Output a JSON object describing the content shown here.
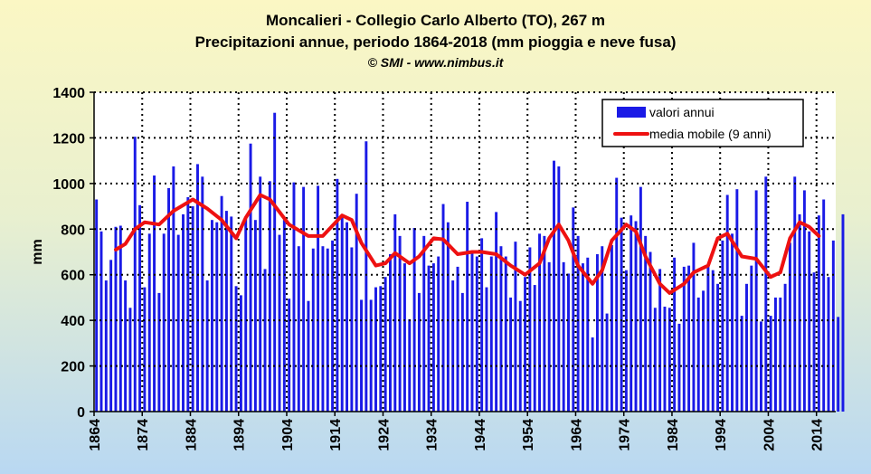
{
  "header": {
    "title": "Moncalieri - Collegio Carlo Alberto (TO), 267 m",
    "subtitle": "Precipitazioni annue, periodo 1864-2018 (mm pioggia e neve fusa)",
    "credit": "© SMI - www.nimbus.it"
  },
  "chart_data": {
    "type": "bar",
    "ylabel": "mm",
    "xlabel": "",
    "ylim": [
      0,
      1400
    ],
    "yticks": [
      0,
      200,
      400,
      600,
      800,
      1000,
      1200,
      1400
    ],
    "xlim": [
      1864,
      2018
    ],
    "xticks": [
      1864,
      1874,
      1884,
      1894,
      1904,
      1914,
      1924,
      1934,
      1944,
      1954,
      1964,
      1974,
      1984,
      1994,
      2004,
      2014
    ],
    "grid": "dotted, y-major and x every 10 years",
    "legend_position": "top-right",
    "colors": {
      "bars": "#1a1ae6",
      "moving_average": "#ee1111",
      "grid": "#000000"
    },
    "series": [
      {
        "name": "valori annui",
        "kind": "bar",
        "start_year": 1864,
        "values": [
          930,
          790,
          575,
          665,
          810,
          815,
          575,
          455,
          1205,
          905,
          545,
          780,
          1035,
          520,
          780,
          980,
          1075,
          775,
          865,
          940,
          900,
          1085,
          1030,
          575,
          840,
          830,
          945,
          880,
          855,
          550,
          510,
          845,
          1175,
          840,
          1030,
          625,
          1010,
          1310,
          775,
          840,
          495,
          1005,
          725,
          985,
          485,
          715,
          990,
          725,
          715,
          750,
          1020,
          855,
          830,
          720,
          955,
          490,
          1185,
          490,
          545,
          550,
          590,
          690,
          865,
          770,
          650,
          405,
          805,
          520,
          770,
          640,
          650,
          680,
          910,
          830,
          575,
          635,
          520,
          920,
          700,
          680,
          760,
          545,
          680,
          875,
          725,
          680,
          500,
          745,
          485,
          590,
          720,
          555,
          780,
          770,
          655,
          1100,
          1075,
          655,
          605,
          895,
          770,
          650,
          675,
          325,
          690,
          725,
          430,
          730,
          1025,
          850,
          620,
          860,
          835,
          985,
          770,
          700,
          455,
          625,
          460,
          455,
          675,
          385,
          635,
          640,
          740,
          500,
          530,
          640,
          620,
          560,
          750,
          950,
          780,
          975,
          420,
          560,
          640,
          970,
          395,
          1030,
          420,
          500,
          500,
          560,
          740,
          1030,
          865,
          970,
          790,
          610,
          860,
          930,
          590,
          750,
          415,
          865
        ]
      },
      {
        "name": "media mobile (9 anni)",
        "kind": "line",
        "points": [
          [
            1868,
            710
          ],
          [
            1870,
            735
          ],
          [
            1872,
            800
          ],
          [
            1874,
            830
          ],
          [
            1877,
            820
          ],
          [
            1880,
            880
          ],
          [
            1884,
            930
          ],
          [
            1887,
            890
          ],
          [
            1890,
            840
          ],
          [
            1893,
            760
          ],
          [
            1895,
            850
          ],
          [
            1898,
            950
          ],
          [
            1900,
            930
          ],
          [
            1904,
            820
          ],
          [
            1908,
            770
          ],
          [
            1911,
            770
          ],
          [
            1915,
            860
          ],
          [
            1917,
            840
          ],
          [
            1919,
            740
          ],
          [
            1922,
            640
          ],
          [
            1924,
            650
          ],
          [
            1926,
            695
          ],
          [
            1929,
            650
          ],
          [
            1931,
            680
          ],
          [
            1934,
            760
          ],
          [
            1936,
            755
          ],
          [
            1939,
            690
          ],
          [
            1942,
            700
          ],
          [
            1944,
            700
          ],
          [
            1947,
            690
          ],
          [
            1950,
            640
          ],
          [
            1953,
            600
          ],
          [
            1956,
            650
          ],
          [
            1958,
            760
          ],
          [
            1960,
            820
          ],
          [
            1962,
            750
          ],
          [
            1964,
            640
          ],
          [
            1967,
            560
          ],
          [
            1969,
            620
          ],
          [
            1971,
            750
          ],
          [
            1974,
            820
          ],
          [
            1976,
            790
          ],
          [
            1978,
            680
          ],
          [
            1981,
            560
          ],
          [
            1983,
            520
          ],
          [
            1986,
            560
          ],
          [
            1988,
            610
          ],
          [
            1991,
            640
          ],
          [
            1993,
            760
          ],
          [
            1995,
            780
          ],
          [
            1998,
            680
          ],
          [
            2001,
            670
          ],
          [
            2004,
            590
          ],
          [
            2006,
            610
          ],
          [
            2008,
            760
          ],
          [
            2010,
            830
          ],
          [
            2012,
            810
          ],
          [
            2014,
            770
          ]
        ]
      }
    ]
  }
}
